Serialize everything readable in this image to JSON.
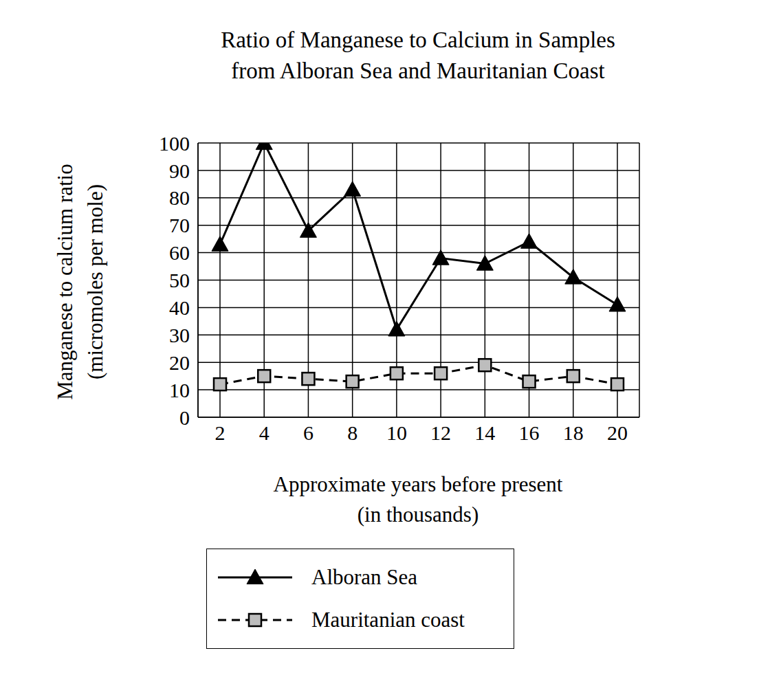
{
  "chart_data": {
    "type": "line",
    "title": "Ratio of Manganese to Calcium in Samples\nfrom Alboran Sea and Mauritanian Coast",
    "x_label": "Approximate years before present\n(in thousands)",
    "y_label": "Manganese to calcium ratio\n(micromoles per mole)",
    "categories": [
      "2",
      "4",
      "6",
      "8",
      "10",
      "12",
      "14",
      "16",
      "18",
      "20"
    ],
    "series": [
      {
        "name": "Alboran Sea",
        "color": "#000000",
        "marker": "triangle",
        "line_style": "solid",
        "values": [
          63,
          100,
          68,
          83,
          32,
          58,
          56,
          64,
          51,
          41
        ]
      },
      {
        "name": "Mauritanian coast",
        "color": "#000000",
        "marker": "square",
        "line_style": "dashed",
        "values": [
          12,
          15,
          14,
          13,
          16,
          16,
          19,
          13,
          15,
          12
        ]
      }
    ],
    "ylim": [
      0,
      100
    ],
    "yticks": [
      0,
      10,
      20,
      30,
      40,
      50,
      60,
      70,
      80,
      90,
      100
    ],
    "grid": true,
    "legend": "bottom"
  }
}
